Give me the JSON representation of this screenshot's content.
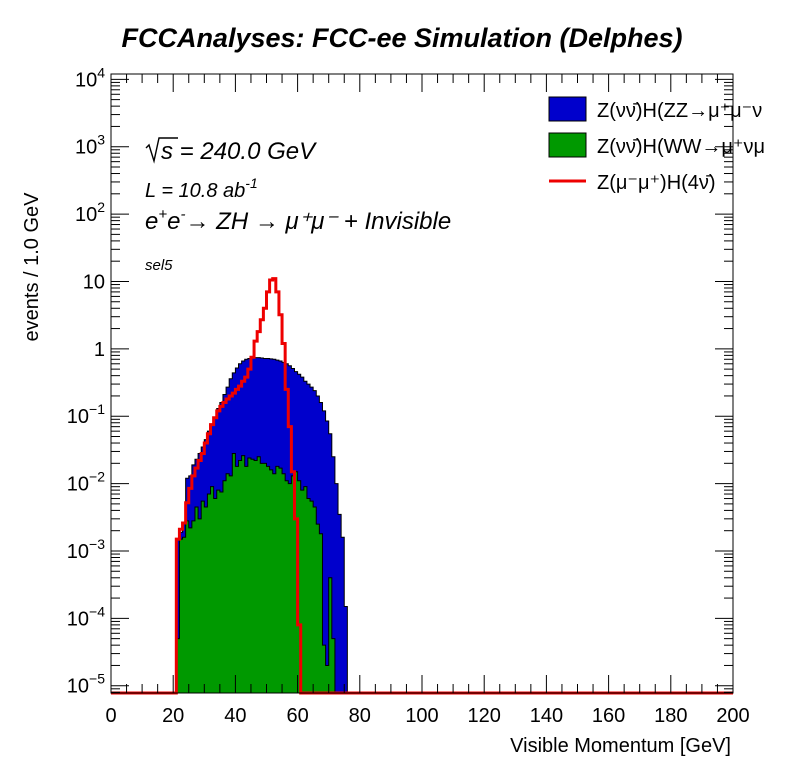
{
  "chart_data": {
    "type": "histogram",
    "title": "FCCAnalyses: FCC-ee Simulation (Delphes)",
    "xlabel": "Visible Momentum [GeV]",
    "ylabel": "events / 1.0 GeV",
    "xlim": [
      0,
      200
    ],
    "ylim": [
      7.8e-06,
      12000
    ],
    "yscale": "log",
    "bin_width": 1.0,
    "x_ticks": [
      "0",
      "20",
      "40",
      "60",
      "80",
      "100",
      "120",
      "140",
      "160",
      "180",
      "200"
    ],
    "y_ticks": [
      {
        "base": "10",
        "exp": "4"
      },
      {
        "base": "10",
        "exp": "3"
      },
      {
        "base": "10",
        "exp": "2"
      },
      {
        "base": "10",
        "exp": ""
      },
      {
        "base": "1",
        "exp": ""
      },
      {
        "base": "10",
        "exp": "−1"
      },
      {
        "base": "10",
        "exp": "−2"
      },
      {
        "base": "10",
        "exp": "−3"
      },
      {
        "base": "10",
        "exp": "−4"
      },
      {
        "base": "10",
        "exp": "−5"
      }
    ],
    "annotations": {
      "sqrt_s": "s = 240.0 GeV",
      "lumi_prefix": "L = 10.8 ab",
      "lumi_exp": "-1",
      "process": "→ ZH → μ⁺μ⁻ + Invisible",
      "selection": "sel5"
    },
    "legend_position": "top-right",
    "series": [
      {
        "name": "Z(νν̄)H(ZZ→μ⁺μ⁻ν",
        "color": "#0000cc",
        "style": "filled",
        "x_start": 20,
        "values": [
          5e-06,
          0.0015,
          0.0019,
          0.0026,
          0.012,
          0.013,
          0.019,
          0.023,
          0.028,
          0.035,
          0.045,
          0.06,
          0.075,
          0.095,
          0.13,
          0.16,
          0.21,
          0.27,
          0.36,
          0.44,
          0.52,
          0.6,
          0.66,
          0.7,
          0.72,
          0.73,
          0.74,
          0.74,
          0.73,
          0.72,
          0.72,
          0.71,
          0.7,
          0.68,
          0.66,
          0.63,
          0.6,
          0.56,
          0.51,
          0.46,
          0.42,
          0.38,
          0.33,
          0.3,
          0.27,
          0.24,
          0.2,
          0.16,
          0.12,
          0.085,
          0.055,
          0.025,
          0.01,
          0.0035,
          0.0016,
          0.00015
        ]
      },
      {
        "name": "Z(νν̄)H(WW→μ⁺νμ",
        "color": "#009900",
        "style": "filled",
        "x_start": 20,
        "values": [
          5e-06,
          5e-05,
          0.0015,
          0.0016,
          0.0028,
          0.0022,
          0.0028,
          0.0045,
          0.003,
          0.0055,
          0.0045,
          0.007,
          0.009,
          0.006,
          0.008,
          0.0075,
          0.011,
          0.014,
          0.013,
          0.028,
          0.018,
          0.022,
          0.026,
          0.018,
          0.024,
          0.023,
          0.022,
          0.025,
          0.02,
          0.02,
          0.018,
          0.016,
          0.014,
          0.018,
          0.017,
          0.014,
          0.011,
          0.01,
          0.013,
          0.015,
          0.011,
          0.008,
          0.009,
          0.006,
          0.0055,
          0.0045,
          0.0025,
          0.0018,
          4e-05,
          2e-05,
          0.0004,
          5e-05
        ]
      },
      {
        "name": "Z(μ⁻μ⁺)H(4ν̄)",
        "color": "#ee0000",
        "style": "line",
        "x_start": 20,
        "values": [
          5e-06,
          0.0015,
          0.0021,
          0.0026,
          0.0052,
          0.0085,
          0.013,
          0.017,
          0.022,
          0.028,
          0.04,
          0.055,
          0.075,
          0.095,
          0.12,
          0.14,
          0.16,
          0.18,
          0.2,
          0.22,
          0.25,
          0.28,
          0.33,
          0.38,
          0.5,
          0.75,
          1.3,
          1.8,
          2.7,
          4.0,
          7.0,
          10.5,
          11.0,
          7.0,
          3.2,
          1.2,
          0.25,
          0.07,
          0.015,
          0.003,
          8e-05
        ]
      }
    ]
  }
}
